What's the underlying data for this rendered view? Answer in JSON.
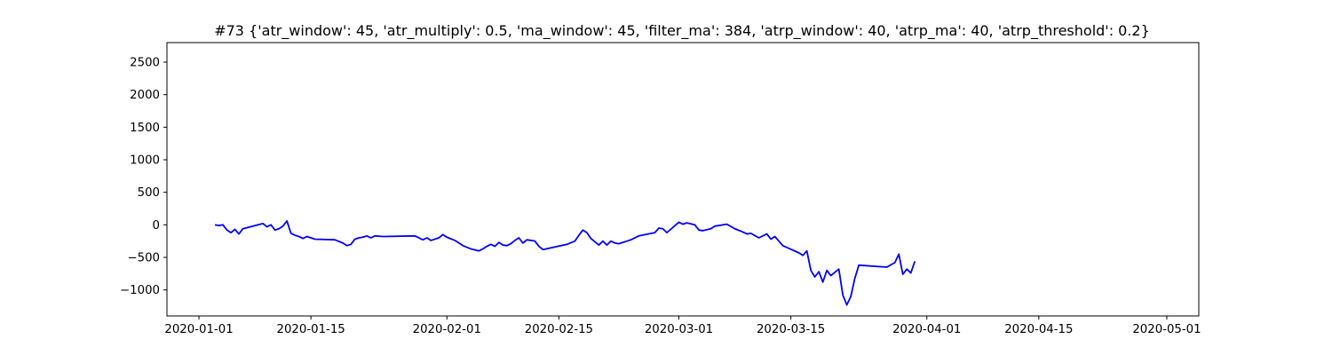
{
  "chart_data": {
    "type": "line",
    "title": "#73 {'atr_window': 45, 'atr_multiply': 0.5, 'ma_window': 45, 'filter_ma': 384, 'atrp_window': 40, 'atrp_ma': 40, 'atrp_threshold': 0.2}",
    "xlabel": "",
    "ylabel": "",
    "x_axis_type": "date",
    "xlim": [
      "2019-12-28",
      "2020-05-05"
    ],
    "ylim": [
      -1400,
      2800
    ],
    "x_ticks": [
      "2020-01-01",
      "2020-01-15",
      "2020-02-01",
      "2020-02-15",
      "2020-03-01",
      "2020-03-15",
      "2020-04-01",
      "2020-04-15",
      "2020-05-01"
    ],
    "y_ticks": [
      -1000,
      -500,
      0,
      500,
      1000,
      1500,
      2000,
      2500
    ],
    "grid": false,
    "legend": "none",
    "series": [
      {
        "color": "#0000ff",
        "points": [
          [
            "2020-01-03",
            0
          ],
          [
            "2020-01-03T12:00",
            -10
          ],
          [
            "2020-01-04",
            0
          ],
          [
            "2020-01-04T12:00",
            -80
          ],
          [
            "2020-01-05",
            -120
          ],
          [
            "2020-01-05T12:00",
            -70
          ],
          [
            "2020-01-06",
            -140
          ],
          [
            "2020-01-06T12:00",
            -60
          ],
          [
            "2020-01-09",
            20
          ],
          [
            "2020-01-09T12:00",
            -30
          ],
          [
            "2020-01-10",
            0
          ],
          [
            "2020-01-10T12:00",
            -80
          ],
          [
            "2020-01-11",
            -60
          ],
          [
            "2020-01-11T12:00",
            -20
          ],
          [
            "2020-01-12",
            60
          ],
          [
            "2020-01-12T12:00",
            -130
          ],
          [
            "2020-01-13",
            -160
          ],
          [
            "2020-01-13T12:00",
            -180
          ],
          [
            "2020-01-14",
            -210
          ],
          [
            "2020-01-14T12:00",
            -180
          ],
          [
            "2020-01-15",
            -200
          ],
          [
            "2020-01-15T12:00",
            -220
          ],
          [
            "2020-01-18",
            -230
          ],
          [
            "2020-01-19",
            -280
          ],
          [
            "2020-01-19T12:00",
            -320
          ],
          [
            "2020-01-20",
            -300
          ],
          [
            "2020-01-20T12:00",
            -220
          ],
          [
            "2020-01-21",
            -200
          ],
          [
            "2020-01-21T12:00",
            -190
          ],
          [
            "2020-01-22",
            -170
          ],
          [
            "2020-01-22T12:00",
            -200
          ],
          [
            "2020-01-23",
            -170
          ],
          [
            "2020-01-24",
            -180
          ],
          [
            "2020-01-28",
            -170
          ],
          [
            "2020-01-29",
            -230
          ],
          [
            "2020-01-29T12:00",
            -200
          ],
          [
            "2020-01-30",
            -240
          ],
          [
            "2020-01-31",
            -200
          ],
          [
            "2020-01-31T12:00",
            -150
          ],
          [
            "2020-02-01",
            -190
          ],
          [
            "2020-02-02",
            -240
          ],
          [
            "2020-02-03",
            -320
          ],
          [
            "2020-02-04",
            -370
          ],
          [
            "2020-02-05",
            -400
          ],
          [
            "2020-02-05T12:00",
            -370
          ],
          [
            "2020-02-06",
            -330
          ],
          [
            "2020-02-06T12:00",
            -300
          ],
          [
            "2020-02-07",
            -330
          ],
          [
            "2020-02-07T12:00",
            -270
          ],
          [
            "2020-02-08",
            -310
          ],
          [
            "2020-02-08T12:00",
            -320
          ],
          [
            "2020-02-09",
            -290
          ],
          [
            "2020-02-09T12:00",
            -240
          ],
          [
            "2020-02-10",
            -200
          ],
          [
            "2020-02-10T12:00",
            -280
          ],
          [
            "2020-02-11",
            -230
          ],
          [
            "2020-02-12",
            -250
          ],
          [
            "2020-02-12T12:00",
            -330
          ],
          [
            "2020-02-13",
            -380
          ],
          [
            "2020-02-16",
            -300
          ],
          [
            "2020-02-17",
            -250
          ],
          [
            "2020-02-17T12:00",
            -160
          ],
          [
            "2020-02-18",
            -80
          ],
          [
            "2020-02-18T12:00",
            -120
          ],
          [
            "2020-02-19",
            -210
          ],
          [
            "2020-02-19T12:00",
            -260
          ],
          [
            "2020-02-20",
            -310
          ],
          [
            "2020-02-20T12:00",
            -250
          ],
          [
            "2020-02-21",
            -310
          ],
          [
            "2020-02-21T12:00",
            -250
          ],
          [
            "2020-02-22",
            -280
          ],
          [
            "2020-02-22T12:00",
            -290
          ],
          [
            "2020-02-23",
            -270
          ],
          [
            "2020-02-23T12:00",
            -250
          ],
          [
            "2020-02-24",
            -230
          ],
          [
            "2020-02-25",
            -170
          ],
          [
            "2020-02-27",
            -120
          ],
          [
            "2020-02-27T12:00",
            -50
          ],
          [
            "2020-02-28",
            -60
          ],
          [
            "2020-02-28T12:00",
            -120
          ],
          [
            "2020-03-01",
            40
          ],
          [
            "2020-03-01T12:00",
            10
          ],
          [
            "2020-03-02",
            30
          ],
          [
            "2020-03-03",
            0
          ],
          [
            "2020-03-03T12:00",
            -80
          ],
          [
            "2020-03-04",
            -90
          ],
          [
            "2020-03-05",
            -60
          ],
          [
            "2020-03-05T12:00",
            -20
          ],
          [
            "2020-03-07",
            10
          ],
          [
            "2020-03-08",
            -60
          ],
          [
            "2020-03-09",
            -110
          ],
          [
            "2020-03-09T12:00",
            -140
          ],
          [
            "2020-03-10",
            -130
          ],
          [
            "2020-03-11",
            -200
          ],
          [
            "2020-03-12",
            -140
          ],
          [
            "2020-03-12T12:00",
            -220
          ],
          [
            "2020-03-13",
            -180
          ],
          [
            "2020-03-14",
            -320
          ],
          [
            "2020-03-16",
            -430
          ],
          [
            "2020-03-16T12:00",
            -470
          ],
          [
            "2020-03-17",
            -400
          ],
          [
            "2020-03-17T12:00",
            -700
          ],
          [
            "2020-03-18",
            -800
          ],
          [
            "2020-03-18T12:00",
            -720
          ],
          [
            "2020-03-19",
            -880
          ],
          [
            "2020-03-19T12:00",
            -700
          ],
          [
            "2020-03-20",
            -780
          ],
          [
            "2020-03-21",
            -680
          ],
          [
            "2020-03-21T12:00",
            -1080
          ],
          [
            "2020-03-22",
            -1230
          ],
          [
            "2020-03-22T12:00",
            -1100
          ],
          [
            "2020-03-23",
            -820
          ],
          [
            "2020-03-23T12:00",
            -620
          ],
          [
            "2020-03-27",
            -650
          ],
          [
            "2020-03-28",
            -580
          ],
          [
            "2020-03-28T12:00",
            -450
          ],
          [
            "2020-03-29",
            -760
          ],
          [
            "2020-03-29T12:00",
            -680
          ],
          [
            "2020-03-30",
            -740
          ],
          [
            "2020-03-30T12:00",
            -560
          ]
        ]
      }
    ]
  }
}
